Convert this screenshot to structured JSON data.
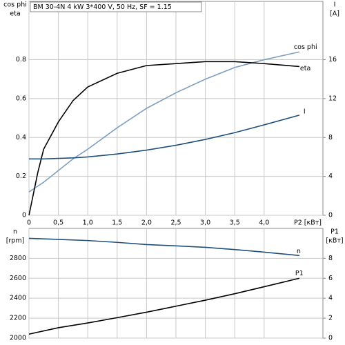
{
  "chart_data": [
    {
      "type": "line",
      "title": "BM 30-4N   4 kW   3*400 V, 50 Hz, SF = 1.15",
      "ylabel": [
        "cos phi",
        "eta"
      ],
      "y2label": [
        "I",
        "[A]"
      ],
      "xlabel": "P2 [кВт]",
      "x": [
        0,
        0.15,
        0.25,
        0.5,
        0.75,
        1.0,
        1.5,
        2.0,
        2.5,
        3.0,
        3.5,
        4.0,
        4.6
      ],
      "xlim": [
        0,
        5
      ],
      "xticks": [
        0,
        {
          "value": 0.5,
          "label": "0,5"
        },
        {
          "value": 1,
          "label": "1,0"
        },
        {
          "value": 1.5,
          "label": "1,5"
        },
        {
          "value": 2,
          "label": "2,0"
        },
        {
          "value": 2.5,
          "label": "2,5"
        },
        {
          "value": 3,
          "label": "3,0"
        },
        {
          "value": 3.5,
          "label": "3,5"
        },
        {
          "value": 4,
          "label": "4,0"
        }
      ],
      "ylim": [
        0,
        1.1
      ],
      "yticks": [
        0,
        0.2,
        0.4,
        0.6,
        0.8
      ],
      "y2lim": [
        0,
        22
      ],
      "y2ticks": [
        0,
        4,
        8,
        12,
        16
      ],
      "grid": true,
      "series": [
        {
          "name": "cos phi",
          "color": "#7f9fc0",
          "values": [
            0.12,
            0.15,
            0.17,
            0.23,
            0.29,
            0.34,
            0.45,
            0.55,
            0.63,
            0.7,
            0.76,
            0.8,
            0.84
          ]
        },
        {
          "name": "eta",
          "color": "#000000",
          "values": [
            0,
            0.22,
            0.34,
            0.48,
            0.59,
            0.66,
            0.73,
            0.77,
            0.78,
            0.79,
            0.79,
            0.78,
            0.765
          ]
        },
        {
          "name": "I",
          "color": "#1f4e7a",
          "axis": "y2",
          "values": [
            5.8,
            5.8,
            5.8,
            5.85,
            5.9,
            6.0,
            6.3,
            6.7,
            7.2,
            7.8,
            8.5,
            9.3,
            10.3
          ]
        }
      ]
    },
    {
      "type": "line",
      "ylabel": [
        "n",
        "[rpm]"
      ],
      "y2label": [
        "P1",
        "[кВт]"
      ],
      "x": [
        0,
        0.5,
        1.0,
        1.5,
        2.0,
        2.5,
        3.0,
        3.5,
        4.0,
        4.6
      ],
      "xlim": [
        0,
        5
      ],
      "ylim": [
        2000,
        3100
      ],
      "yticks": [
        2000,
        2200,
        2400,
        2600,
        2800
      ],
      "y2lim": [
        0,
        11
      ],
      "y2ticks": [
        0,
        2,
        4,
        6,
        8
      ],
      "grid": true,
      "series": [
        {
          "name": "n",
          "color": "#1f4e7a",
          "values": [
            3000,
            2990,
            2978,
            2960,
            2938,
            2925,
            2910,
            2888,
            2862,
            2828
          ]
        },
        {
          "name": "P1",
          "color": "#000000",
          "axis": "y2",
          "values": [
            0.4,
            1.04,
            1.52,
            2.05,
            2.6,
            3.2,
            3.8,
            4.45,
            5.15,
            6.0
          ]
        }
      ]
    }
  ]
}
